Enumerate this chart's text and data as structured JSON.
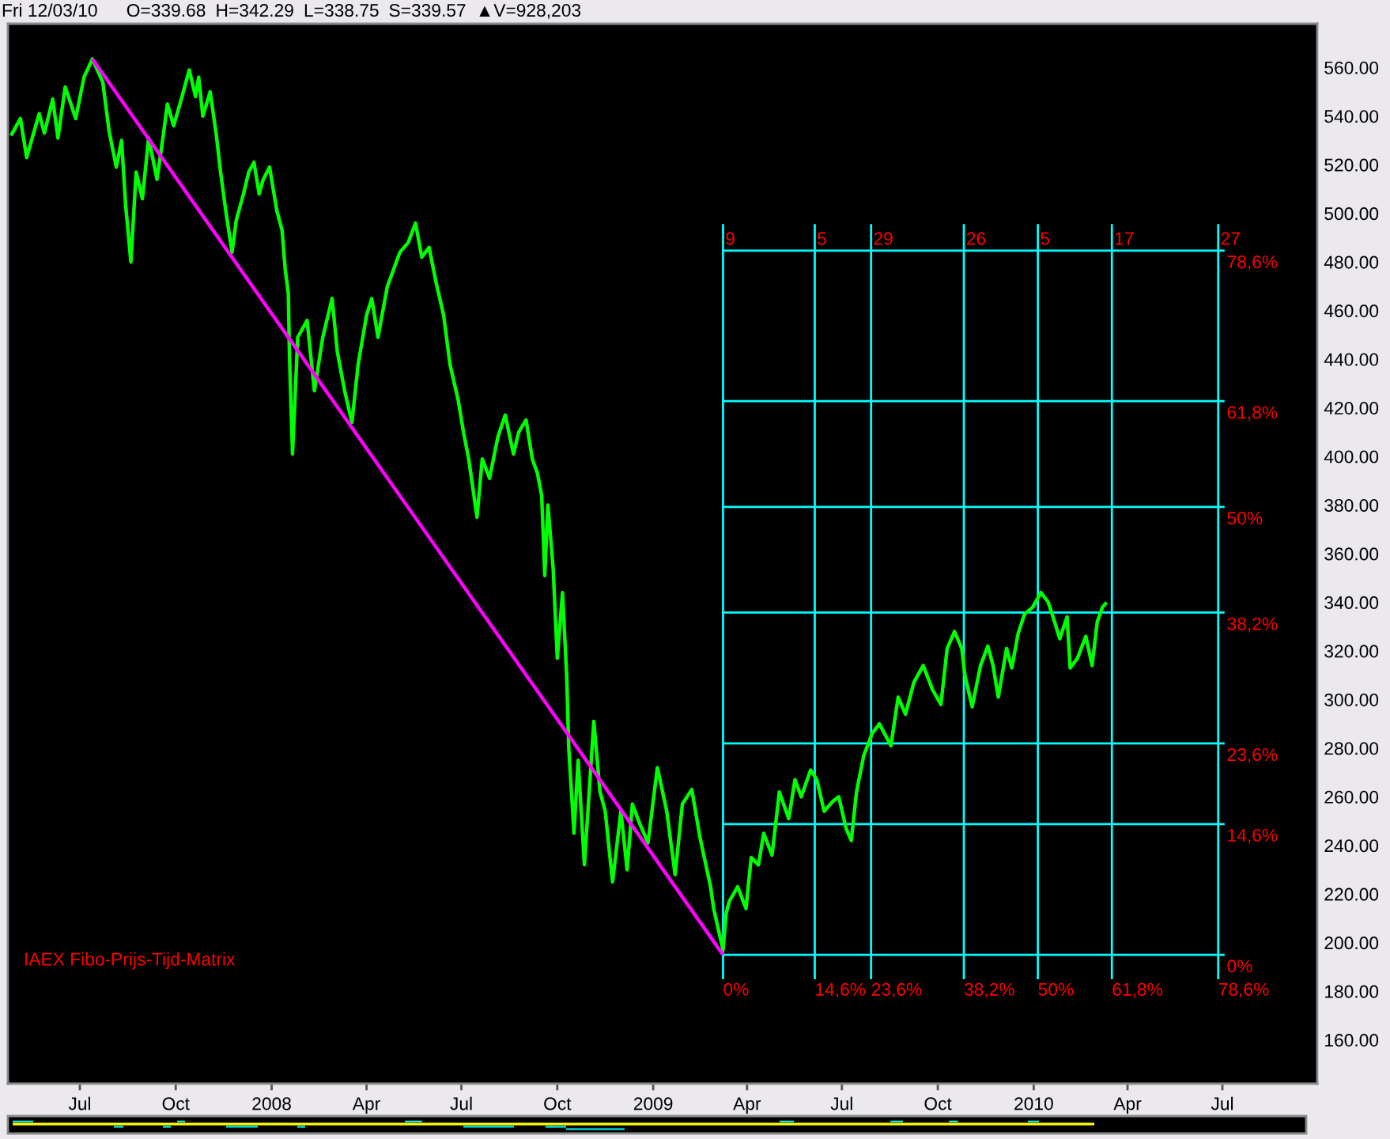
{
  "chart_data": {
    "type": "line",
    "title": "IAEX Fibo-Prijs-Tijd-Matrix",
    "annotations": [
      "Fri 12/03/10",
      "O=339.68",
      "H=342.29",
      "L=338.75",
      "S=339.57",
      "▲V=928,203",
      {
        "text": "9",
        "x": "2009-03-09",
        "y": 489
      },
      {
        "text": "5",
        "x": "2009-06-05",
        "y": 489
      },
      {
        "text": "29",
        "x": "2009-07-29",
        "y": 489
      },
      {
        "text": "26",
        "x": "2009-10-26",
        "y": 489
      },
      {
        "text": "5",
        "x": "2010-01-05",
        "y": 489
      },
      {
        "text": "17",
        "x": "2010-03-17",
        "y": 489
      },
      {
        "text": "27",
        "x": "2010-06-27",
        "y": 489
      }
    ],
    "xlim": [
      "2007-04-23",
      "2010-09-30"
    ],
    "xticks": [
      {
        "value": "2007-07-01",
        "label": "Jul"
      },
      {
        "value": "2007-10-01",
        "label": "Oct"
      },
      {
        "value": "2008-01-01",
        "label": "2008"
      },
      {
        "value": "2008-04-01",
        "label": "Apr"
      },
      {
        "value": "2008-07-01",
        "label": "Jul"
      },
      {
        "value": "2008-10-01",
        "label": "Oct"
      },
      {
        "value": "2009-01-01",
        "label": "2009"
      },
      {
        "value": "2009-04-01",
        "label": "Apr"
      },
      {
        "value": "2009-07-01",
        "label": "Jul"
      },
      {
        "value": "2009-10-01",
        "label": "Oct"
      },
      {
        "value": "2010-01-01",
        "label": "2010"
      },
      {
        "value": "2010-04-01",
        "label": "Apr"
      },
      {
        "value": "2010-07-01",
        "label": "Jul"
      }
    ],
    "ylim": [
      142,
      578
    ],
    "yticks": [
      {
        "value": 160,
        "label": "160.00"
      },
      {
        "value": 180,
        "label": "180.00"
      },
      {
        "value": 200,
        "label": "200.00"
      },
      {
        "value": 220,
        "label": "220.00"
      },
      {
        "value": 240,
        "label": "240.00"
      },
      {
        "value": 260,
        "label": "260.00"
      },
      {
        "value": 280,
        "label": "280.00"
      },
      {
        "value": 300,
        "label": "300.00"
      },
      {
        "value": 320,
        "label": "320.00"
      },
      {
        "value": 340,
        "label": "340.00"
      },
      {
        "value": 360,
        "label": "360.00"
      },
      {
        "value": 380,
        "label": "380.00"
      },
      {
        "value": 400,
        "label": "400.00"
      },
      {
        "value": 420,
        "label": "420.00"
      },
      {
        "value": 440,
        "label": "440.00"
      },
      {
        "value": 460,
        "label": "460.00"
      },
      {
        "value": 480,
        "label": "480.00"
      },
      {
        "value": 500,
        "label": "500.00"
      },
      {
        "value": 520,
        "label": "520.00"
      },
      {
        "value": 540,
        "label": "540.00"
      },
      {
        "value": 560,
        "label": "560.00"
      }
    ],
    "y2lim": [
      -14.38,
      103.93
    ],
    "series": [
      {
        "color": "#00ff00",
        "x": [
          "2007-04-26",
          "2007-05-05",
          "2007-05-11",
          "2007-05-23",
          "2007-05-28",
          "2007-06-05",
          "2007-06-10",
          "2007-06-17",
          "2007-06-27",
          "2007-07-05",
          "2007-07-13",
          "2007-07-23",
          "2007-07-29",
          "2007-08-05",
          "2007-08-10",
          "2007-08-14",
          "2007-08-19",
          "2007-08-24",
          "2007-08-30",
          "2007-09-05",
          "2007-09-13",
          "2007-09-19",
          "2007-09-23",
          "2007-09-29",
          "2007-10-07",
          "2007-10-14",
          "2007-10-20",
          "2007-10-23",
          "2007-10-27",
          "2007-11-03",
          "2007-11-09",
          "2007-11-13",
          "2007-11-18",
          "2007-11-24",
          "2007-11-28",
          "2007-12-05",
          "2007-12-10",
          "2007-12-15",
          "2007-12-20",
          "2007-12-24",
          "2007-12-30",
          "2008-01-06",
          "2008-01-11",
          "2008-01-14",
          "2008-01-17",
          "2008-01-18",
          "2008-01-21",
          "2008-01-26",
          "2008-02-04",
          "2008-02-11",
          "2008-02-19",
          "2008-02-28",
          "2008-03-04",
          "2008-03-11",
          "2008-03-18",
          "2008-03-24",
          "2008-04-01",
          "2008-04-06",
          "2008-04-12",
          "2008-04-21",
          "2008-05-03",
          "2008-05-11",
          "2008-05-18",
          "2008-05-24",
          "2008-05-31",
          "2008-06-07",
          "2008-06-14",
          "2008-06-20",
          "2008-06-28",
          "2008-07-03",
          "2008-07-08",
          "2008-07-16",
          "2008-07-21",
          "2008-07-28",
          "2008-08-05",
          "2008-08-12",
          "2008-08-20",
          "2008-08-25",
          "2008-09-01",
          "2008-09-07",
          "2008-09-12",
          "2008-09-16",
          "2008-09-19",
          "2008-09-22",
          "2008-09-27",
          "2008-10-01",
          "2008-10-06",
          "2008-10-10",
          "2008-10-12",
          "2008-10-17",
          "2008-10-21",
          "2008-10-27",
          "2008-11-05",
          "2008-11-11",
          "2008-11-16",
          "2008-11-23",
          "2008-12-01",
          "2008-12-07",
          "2008-12-12",
          "2008-12-19",
          "2008-12-27",
          "2009-01-05",
          "2009-01-14",
          "2009-01-22",
          "2009-01-29",
          "2009-02-07",
          "2009-02-15",
          "2009-02-25",
          "2009-02-28",
          "2009-03-09",
          "2009-03-12",
          "2009-03-15",
          "2009-03-23",
          "2009-03-31",
          "2009-04-05",
          "2009-04-12",
          "2009-04-17",
          "2009-04-25",
          "2009-05-02",
          "2009-05-11",
          "2009-05-17",
          "2009-05-23",
          "2009-06-01",
          "2009-06-07",
          "2009-06-14",
          "2009-06-22",
          "2009-06-28",
          "2009-07-05",
          "2009-07-10",
          "2009-07-15",
          "2009-07-22",
          "2009-07-30",
          "2009-08-06",
          "2009-08-17",
          "2009-08-24",
          "2009-08-31",
          "2009-09-08",
          "2009-09-17",
          "2009-09-26",
          "2009-10-04",
          "2009-10-10",
          "2009-10-17",
          "2009-10-24",
          "2009-10-27",
          "2009-11-03",
          "2009-11-11",
          "2009-11-18",
          "2009-11-23",
          "2009-11-28",
          "2009-12-06",
          "2009-12-11",
          "2009-12-17",
          "2009-12-23",
          "2009-12-31",
          "2010-01-08",
          "2010-01-15",
          "2010-01-21",
          "2010-01-26",
          "2010-02-02",
          "2010-02-05",
          "2010-02-12",
          "2010-02-20",
          "2010-02-26",
          "2010-03-03",
          "2010-03-08",
          "2010-03-12"
        ],
        "values": [
          532,
          539,
          523,
          541,
          533,
          547,
          531,
          552,
          539,
          556,
          563.5,
          554,
          534,
          519,
          530,
          503,
          480,
          517,
          506,
          531,
          514,
          532,
          545,
          536,
          548,
          559,
          548,
          556,
          540,
          550,
          532,
          517,
          501,
          484,
          497,
          508,
          517,
          521,
          508,
          514,
          519,
          501,
          493,
          477,
          467,
          443,
          401,
          449,
          456,
          427,
          449,
          465,
          443,
          427,
          414,
          438,
          458,
          465,
          449,
          470,
          484,
          488,
          496,
          482,
          486,
          471,
          458,
          438,
          423,
          410,
          399,
          375,
          399,
          391,
          408,
          417,
          401,
          410,
          415,
          399,
          393,
          384,
          351,
          380,
          354,
          317,
          344,
          310,
          280,
          245,
          275,
          232,
          291,
          262,
          254,
          225,
          254,
          230,
          257,
          249,
          241,
          272,
          254,
          228,
          257,
          263,
          243,
          223,
          214,
          197,
          212,
          217,
          223,
          214,
          235,
          232,
          245,
          236,
          262,
          251,
          267,
          260,
          271,
          267,
          254,
          258,
          260,
          247,
          242,
          262,
          277,
          286,
          290,
          281,
          301,
          294,
          307,
          314,
          304,
          298,
          321,
          328,
          321,
          310,
          297,
          314,
          322,
          314,
          301,
          321,
          313,
          327,
          335,
          338,
          344,
          340,
          332,
          325,
          334,
          313,
          317,
          326,
          314,
          332,
          338,
          340
        ]
      },
      {
        "type": "line",
        "color": "#ff00ff",
        "x": [
          "2007-07-13",
          "2009-03-09"
        ],
        "values": [
          563.5,
          195
        ]
      }
    ],
    "ref_lines": [
      {
        "axis": "y2",
        "value": 0,
        "label": "0%",
        "color": "#00ffff"
      },
      {
        "axis": "y2",
        "value": 14.6,
        "label": "14,6%",
        "color": "#00ffff"
      },
      {
        "axis": "y2",
        "value": 23.6,
        "label": "23,6%",
        "color": "#00ffff"
      },
      {
        "axis": "y2",
        "value": 38.2,
        "label": "38,2%",
        "color": "#00ffff"
      },
      {
        "axis": "y2",
        "value": 50,
        "label": "50%",
        "color": "#00ffff"
      },
      {
        "axis": "y2",
        "value": 61.8,
        "label": "61,8%",
        "color": "#00ffff"
      },
      {
        "axis": "y2",
        "value": 78.6,
        "label": "78,6%",
        "color": "#00ffff"
      },
      {
        "axis": "x",
        "value": "2009-03-09",
        "label": "0%",
        "color": "#00ffff"
      },
      {
        "axis": "x",
        "value": "2009-06-05",
        "label": "14,6%",
        "color": "#00ffff"
      },
      {
        "axis": "x",
        "value": "2009-07-29",
        "label": "23,6%",
        "color": "#00ffff"
      },
      {
        "axis": "x",
        "value": "2009-10-26",
        "label": "38,2%",
        "color": "#00ffff"
      },
      {
        "axis": "x",
        "value": "2010-01-05",
        "label": "50%",
        "color": "#00ffff"
      },
      {
        "axis": "x",
        "value": "2010-03-17",
        "label": "61,8%",
        "color": "#00ffff"
      },
      {
        "axis": "x",
        "value": "2010-06-27",
        "label": "78,6%",
        "color": "#00ffff"
      }
    ]
  }
}
